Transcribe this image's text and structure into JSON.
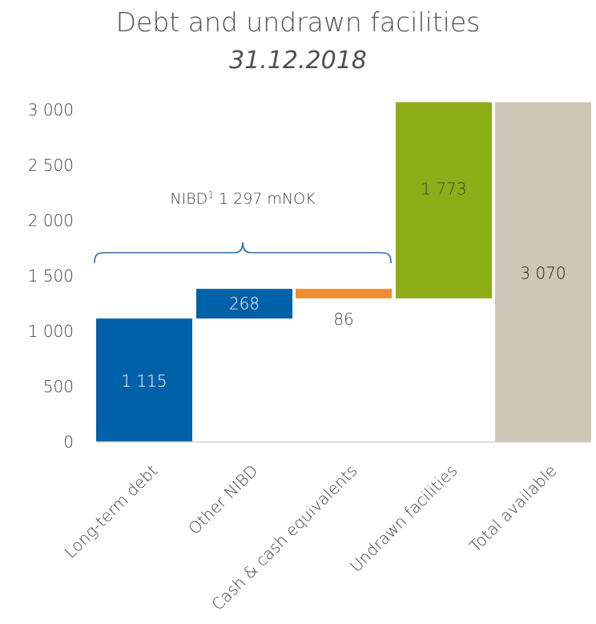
{
  "chart_data": {
    "type": "bar",
    "subtype": "waterfall",
    "title": "Debt and undrawn facilities",
    "subtitle": "31.12.2018",
    "categories": [
      "Long-term debt",
      "Other NIBD",
      "Cash & cash equivalents",
      "Undrawn facilities",
      "Total available"
    ],
    "bars": [
      {
        "category": "Long-term debt",
        "start": 0,
        "end": 1115,
        "label": "1 115",
        "color": "#0060A8",
        "label_color": "#ffffff"
      },
      {
        "category": "Other NIBD",
        "start": 1115,
        "end": 1383,
        "label": "268",
        "color": "#0060A8",
        "label_color": "#ffffff"
      },
      {
        "category": "Cash & cash equivalents",
        "start": 1297,
        "end": 1383,
        "label": "86",
        "color": "#F08C32",
        "label_color": "#404040"
      },
      {
        "category": "Undrawn facilities",
        "start": 1297,
        "end": 3070,
        "label": "1 773",
        "color": "#8CAF19",
        "label_color": "#404040"
      },
      {
        "category": "Total available",
        "start": 0,
        "end": 3070,
        "label": "3 070",
        "color": "#CFC6B6",
        "label_color": "#202020"
      }
    ],
    "yticks": [
      0,
      500,
      1000,
      1500,
      2000,
      2500,
      3000
    ],
    "ytick_labels": [
      "0",
      "500",
      "1 000",
      "1 500",
      "2 000",
      "2 500",
      "3 000"
    ],
    "ylim": [
      0,
      3070
    ],
    "annotation": {
      "prefix": "NIBD",
      "superscript": "1",
      "suffix": " 1 297 mNOK"
    },
    "grid": false,
    "legend": "none"
  }
}
